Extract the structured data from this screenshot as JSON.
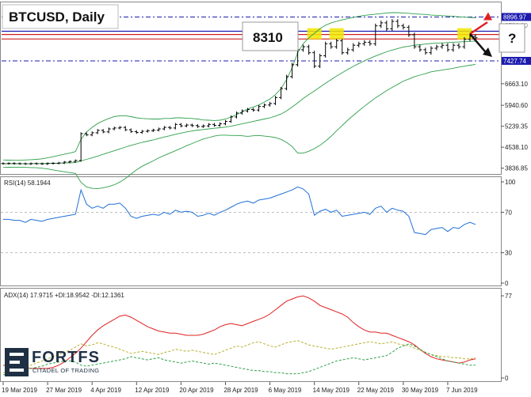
{
  "chart_data": {
    "type": "candlestick",
    "title": "BTCUSD, Daily",
    "price_axis": {
      "ticks": [
        "8896.97",
        "7427.74",
        "6663.10",
        "5940.60",
        "5239.35",
        "4538.10",
        "3836.85"
      ],
      "tick_values": [
        8896.97,
        7427.74,
        6663.1,
        5940.6,
        5239.35,
        4538.1,
        3836.85
      ],
      "faint_tick": "8780.20",
      "ylim": [
        3800,
        9200
      ]
    },
    "x_axis": {
      "labels": [
        "19 Mar 2019",
        "27 Mar 2019",
        "4 Apr 2019",
        "12 Apr 2019",
        "20 Apr 2019",
        "28 Apr 2019",
        "6 May 2019",
        "14 May 2019",
        "22 May 2019",
        "30 May 2019",
        "7 Jun 2019"
      ],
      "label_day_index": [
        0,
        8,
        16,
        24,
        32,
        40,
        48,
        56,
        64,
        72,
        80
      ],
      "num_days": 86
    },
    "closes": [
      3990,
      3995,
      3990,
      3985,
      3980,
      3990,
      3985,
      3980,
      3995,
      4000,
      4010,
      4040,
      4060,
      4090,
      4990,
      4950,
      5020,
      5100,
      5050,
      5150,
      5180,
      5200,
      5120,
      5060,
      5030,
      5070,
      5090,
      5110,
      5150,
      5200,
      5180,
      5300,
      5250,
      5280,
      5260,
      5230,
      5250,
      5300,
      5270,
      5320,
      5400,
      5550,
      5680,
      5750,
      5800,
      5780,
      5900,
      5950,
      6000,
      6200,
      6500,
      6900,
      7300,
      7800,
      7900,
      7700,
      7250,
      7600,
      8000,
      7900,
      8100,
      7700,
      7800,
      7950,
      8000,
      8050,
      8000,
      8600,
      8700,
      8500,
      8750,
      8600,
      8550,
      8300,
      7900,
      7800,
      7700,
      7850,
      7900,
      7950,
      7800,
      7950,
      7900,
      8150,
      8250,
      8200
    ],
    "bollinger": {
      "upper": [
        4110,
        4105,
        4100,
        4100,
        4110,
        4120,
        4130,
        4150,
        4180,
        4220,
        4260,
        4300,
        4340,
        4390,
        4800,
        5050,
        5200,
        5330,
        5420,
        5500,
        5560,
        5590,
        5590,
        5560,
        5520,
        5500,
        5490,
        5480,
        5480,
        5500,
        5500,
        5520,
        5520,
        5510,
        5500,
        5480,
        5450,
        5440,
        5430,
        5440,
        5480,
        5550,
        5630,
        5720,
        5820,
        5880,
        5950,
        6050,
        6150,
        6300,
        6500,
        6800,
        7200,
        7700,
        8000,
        8200,
        8350,
        8500,
        8620,
        8700,
        8750,
        8800,
        8840,
        8880,
        8920,
        8950,
        8970,
        8990,
        9010,
        9030,
        9040,
        9040,
        9030,
        9020,
        9000,
        8990,
        8980,
        8960,
        8950,
        8940,
        8930,
        8920,
        8900,
        8890,
        8880,
        8870
      ],
      "middle": [
        3985,
        3985,
        3985,
        3985,
        3987,
        3988,
        3990,
        3992,
        3995,
        3998,
        4002,
        4008,
        4015,
        4025,
        4080,
        4130,
        4180,
        4240,
        4300,
        4360,
        4420,
        4480,
        4540,
        4600,
        4650,
        4700,
        4740,
        4780,
        4830,
        4880,
        4920,
        4970,
        5010,
        5050,
        5080,
        5110,
        5130,
        5150,
        5170,
        5190,
        5210,
        5240,
        5280,
        5320,
        5360,
        5400,
        5440,
        5480,
        5520,
        5580,
        5650,
        5750,
        5880,
        6020,
        6170,
        6300,
        6420,
        6550,
        6680,
        6800,
        6920,
        7030,
        7140,
        7240,
        7340,
        7430,
        7510,
        7590,
        7660,
        7730,
        7790,
        7840,
        7890,
        7920,
        7950,
        7970,
        7990,
        8010,
        8020,
        8030,
        8040,
        8050,
        8060,
        8070,
        8080,
        8090
      ],
      "lower": [
        3860,
        3865,
        3870,
        3870,
        3864,
        3856,
        3850,
        3834,
        3810,
        3776,
        3744,
        3716,
        3690,
        3660,
        3360,
        3210,
        3160,
        3150,
        3180,
        3220,
        3280,
        3370,
        3490,
        3640,
        3780,
        3900,
        3990,
        4080,
        4180,
        4260,
        4340,
        4420,
        4500,
        4590,
        4660,
        4740,
        4810,
        4860,
        4910,
        4940,
        4940,
        4930,
        4930,
        4920,
        4900,
        4920,
        4930,
        4910,
        4890,
        4860,
        4800,
        4700,
        4560,
        4340,
        4340,
        4400,
        4490,
        4600,
        4740,
        4900,
        5090,
        5260,
        5440,
        5600,
        5760,
        5910,
        6050,
        6190,
        6310,
        6430,
        6540,
        6640,
        6750,
        6820,
        6900,
        6950,
        7000,
        7060,
        7090,
        7120,
        7150,
        7180,
        7220,
        7250,
        7280,
        7310
      ]
    },
    "horizontal_levels": [
      {
        "value": 8896.97,
        "color": "#1a1ab0",
        "style": "dash-dot",
        "label": "8896.97"
      },
      {
        "value": 8310,
        "color": "#d02020",
        "style": "solid",
        "label": "8310"
      },
      {
        "value": 8160,
        "color": "#d02020",
        "style": "solid"
      },
      {
        "value": 8420,
        "color": "#1a1ab0",
        "style": "solid"
      },
      {
        "value": 7427.74,
        "color": "#1a1ab0",
        "style": "dash-dot",
        "label": "7427.74"
      }
    ],
    "annotations": {
      "level_label": "8310",
      "question": "?",
      "up_arrow_color": "#e02020",
      "down_arrow_color": "#111111",
      "highlight_color": "#f2e600"
    },
    "rsi": {
      "label": "RSI(14) 58.1944",
      "ticks": [
        "100",
        "70",
        "30",
        "0"
      ],
      "tick_values": [
        100,
        70,
        30,
        0
      ],
      "level_lines": [
        70,
        30
      ],
      "values": [
        63,
        63,
        62,
        62,
        60,
        63,
        62,
        61,
        63,
        64,
        65,
        66,
        67,
        68,
        92,
        78,
        74,
        76,
        74,
        78,
        78,
        79,
        74,
        66,
        64,
        66,
        67,
        68,
        67,
        70,
        68,
        72,
        70,
        71,
        70,
        66,
        67,
        69,
        67,
        70,
        72,
        75,
        78,
        80,
        81,
        79,
        82,
        83,
        84,
        86,
        88,
        90,
        92,
        95,
        93,
        88,
        67,
        71,
        73,
        70,
        72,
        66,
        67,
        68,
        69,
        70,
        68,
        74,
        76,
        70,
        74,
        72,
        71,
        66,
        50,
        49,
        48,
        53,
        54,
        55,
        51,
        55,
        54,
        58,
        60,
        58
      ],
      "color": "#1e6fd8",
      "ylim": [
        0,
        100
      ]
    },
    "adx": {
      "label": "ADX(14) 17.9715 +DI:18.9542 -DI:12.1361",
      "ticks": [
        "77",
        "0"
      ],
      "tick_values": [
        77,
        0
      ],
      "series": [
        {
          "values": [
            12,
            11,
            11,
            10,
            10,
            9,
            9,
            9,
            9,
            10,
            12,
            15,
            19,
            23,
            28,
            34,
            40,
            45,
            49,
            52,
            55,
            58,
            59,
            57,
            54,
            51,
            48,
            46,
            44,
            43,
            42,
            42,
            41,
            40,
            40,
            40,
            41,
            43,
            45,
            48,
            50,
            51,
            50,
            49,
            51,
            53,
            55,
            57,
            60,
            64,
            68,
            72,
            74,
            76,
            77,
            75,
            72,
            68,
            66,
            64,
            62,
            60,
            57,
            52,
            48,
            45,
            43,
            43,
            42,
            42,
            40,
            38,
            36,
            34,
            31,
            27,
            23,
            20,
            18,
            17,
            16,
            15,
            14,
            15,
            17,
            18
          ],
          "color": "#e02020",
          "style": "solid"
        },
        {
          "values": [
            5,
            6,
            7,
            8,
            10,
            12,
            14,
            16,
            18,
            20,
            22,
            24,
            26,
            29,
            32,
            30,
            31,
            33,
            32,
            30,
            29,
            27,
            25,
            23,
            24,
            25,
            24,
            23,
            22,
            24,
            25,
            27,
            26,
            25,
            26,
            25,
            24,
            23,
            22,
            24,
            26,
            28,
            30,
            29,
            31,
            33,
            34,
            32,
            30,
            29,
            31,
            33,
            34,
            35,
            33,
            31,
            30,
            29,
            28,
            27,
            28,
            29,
            30,
            31,
            32,
            33,
            34,
            33,
            32,
            33,
            34,
            32,
            31,
            30,
            28,
            26,
            24,
            22,
            21,
            20,
            20,
            19,
            19,
            18,
            18,
            19
          ],
          "color": "#b9b030",
          "style": "dashed"
        },
        {
          "values": [
            3,
            4,
            5,
            6,
            7,
            9,
            10,
            11,
            13,
            14,
            15,
            16,
            16,
            15,
            12,
            11,
            12,
            13,
            14,
            15,
            16,
            17,
            18,
            20,
            19,
            18,
            17,
            18,
            19,
            17,
            16,
            15,
            14,
            15,
            16,
            15,
            14,
            13,
            14,
            13,
            12,
            11,
            10,
            9,
            8,
            7,
            7,
            6,
            6,
            5,
            5,
            4,
            4,
            4,
            5,
            6,
            8,
            10,
            12,
            14,
            16,
            17,
            18,
            19,
            18,
            17,
            18,
            19,
            20,
            21,
            24,
            28,
            30,
            32,
            30,
            27,
            24,
            22,
            20,
            18,
            16,
            15,
            14,
            13,
            12,
            12
          ],
          "color": "#2ea04a",
          "style": "dashed"
        }
      ],
      "ylim": [
        0,
        80
      ]
    },
    "colors": {
      "candle": "#000000",
      "bollinger": "#2ea04a",
      "axis_text": "#222222",
      "level_red": "#d02020",
      "level_blue": "#1a1ab0"
    }
  },
  "branding": {
    "logo_text": "FORTFS",
    "logo_subtitle": "CITADEL OF TRADING",
    "logo_mark": "fortfs-logo-mark"
  }
}
